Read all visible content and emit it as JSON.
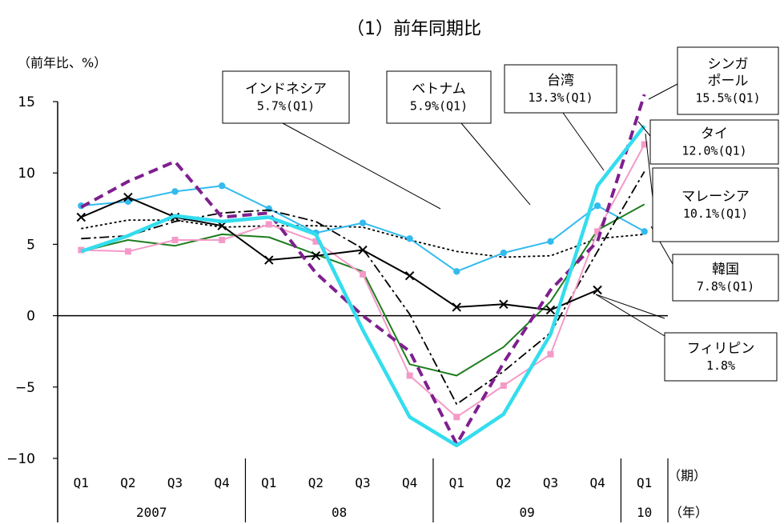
{
  "chart_data": {
    "type": "line",
    "title": "（1）前年同期比",
    "ylabel": "（前年比、%）",
    "ylim": [
      -10,
      15
    ],
    "yticks": [
      15,
      10,
      5,
      0,
      -5,
      -10
    ],
    "grid": false,
    "x_axis": {
      "period_unit": "（期）",
      "year_unit": "（年）",
      "quarters": [
        "Q1",
        "Q2",
        "Q3",
        "Q4",
        "Q1",
        "Q2",
        "Q3",
        "Q4",
        "Q1",
        "Q2",
        "Q3",
        "Q4",
        "Q1"
      ],
      "years": [
        "2007",
        "08",
        "09",
        "10"
      ]
    },
    "series": [
      {
        "key": "indonesia",
        "name": "インドネシア",
        "value_label": "5.7%(Q1)",
        "color": "#000000",
        "style": "dotted",
        "values": [
          6.1,
          6.7,
          6.7,
          6.2,
          6.3,
          6.3,
          6.2,
          5.3,
          4.5,
          4.1,
          4.2,
          5.4,
          5.7
        ]
      },
      {
        "key": "vietnam",
        "name": "ベトナム",
        "value_label": "5.9%(Q1)",
        "color": "#33BBEE",
        "style": "solid-marker",
        "values": [
          7.7,
          8.0,
          8.7,
          9.1,
          7.5,
          5.8,
          6.5,
          5.4,
          3.1,
          4.4,
          5.2,
          7.7,
          5.9
        ]
      },
      {
        "key": "taiwan",
        "name": "台湾",
        "value_label": "13.3%(Q1)",
        "color": "#33DDEE",
        "style": "thick",
        "values": [
          4.5,
          5.6,
          7.0,
          6.6,
          6.9,
          5.7,
          -1.0,
          -7.1,
          -9.1,
          -6.9,
          -1.3,
          9.1,
          13.3
        ]
      },
      {
        "key": "singapore",
        "name": "シンガ\nポール",
        "value_label": "15.5%(Q1)",
        "color": "#7F1F8F",
        "style": "dashed-thick",
        "values": [
          7.6,
          9.4,
          10.8,
          6.9,
          7.2,
          3.0,
          0.0,
          -2.5,
          -9.0,
          -3.3,
          1.8,
          5.2,
          15.5
        ]
      },
      {
        "key": "thailand",
        "name": "タイ",
        "value_label": "12.0%(Q1)",
        "color": "#F49AC8",
        "style": "square-marker",
        "values": [
          4.6,
          4.5,
          5.3,
          5.3,
          6.4,
          5.2,
          2.9,
          -4.2,
          -7.1,
          -4.9,
          -2.7,
          5.9,
          12.0
        ]
      },
      {
        "key": "malaysia",
        "name": "マレーシア",
        "value_label": "10.1%(Q1)",
        "color": "#000000",
        "style": "dash-dot",
        "values": [
          5.4,
          5.6,
          6.6,
          7.2,
          7.4,
          6.6,
          4.7,
          0.1,
          -6.2,
          -3.9,
          -1.2,
          4.5,
          10.1
        ]
      },
      {
        "key": "korea",
        "name": "韓国",
        "value_label": "7.8%(Q1)",
        "color": "#1E7E1E",
        "style": "solid",
        "values": [
          4.5,
          5.3,
          4.9,
          5.7,
          5.5,
          4.3,
          3.1,
          -3.4,
          -4.2,
          -2.2,
          1.0,
          6.0,
          7.8
        ]
      },
      {
        "key": "philippines",
        "name": "フィリピン",
        "value_label": "1.8%",
        "color": "#000000",
        "style": "x-marker",
        "values": [
          6.9,
          8.3,
          6.9,
          6.3,
          3.9,
          4.2,
          4.6,
          2.8,
          0.6,
          0.8,
          0.4,
          1.8,
          null
        ]
      }
    ]
  }
}
